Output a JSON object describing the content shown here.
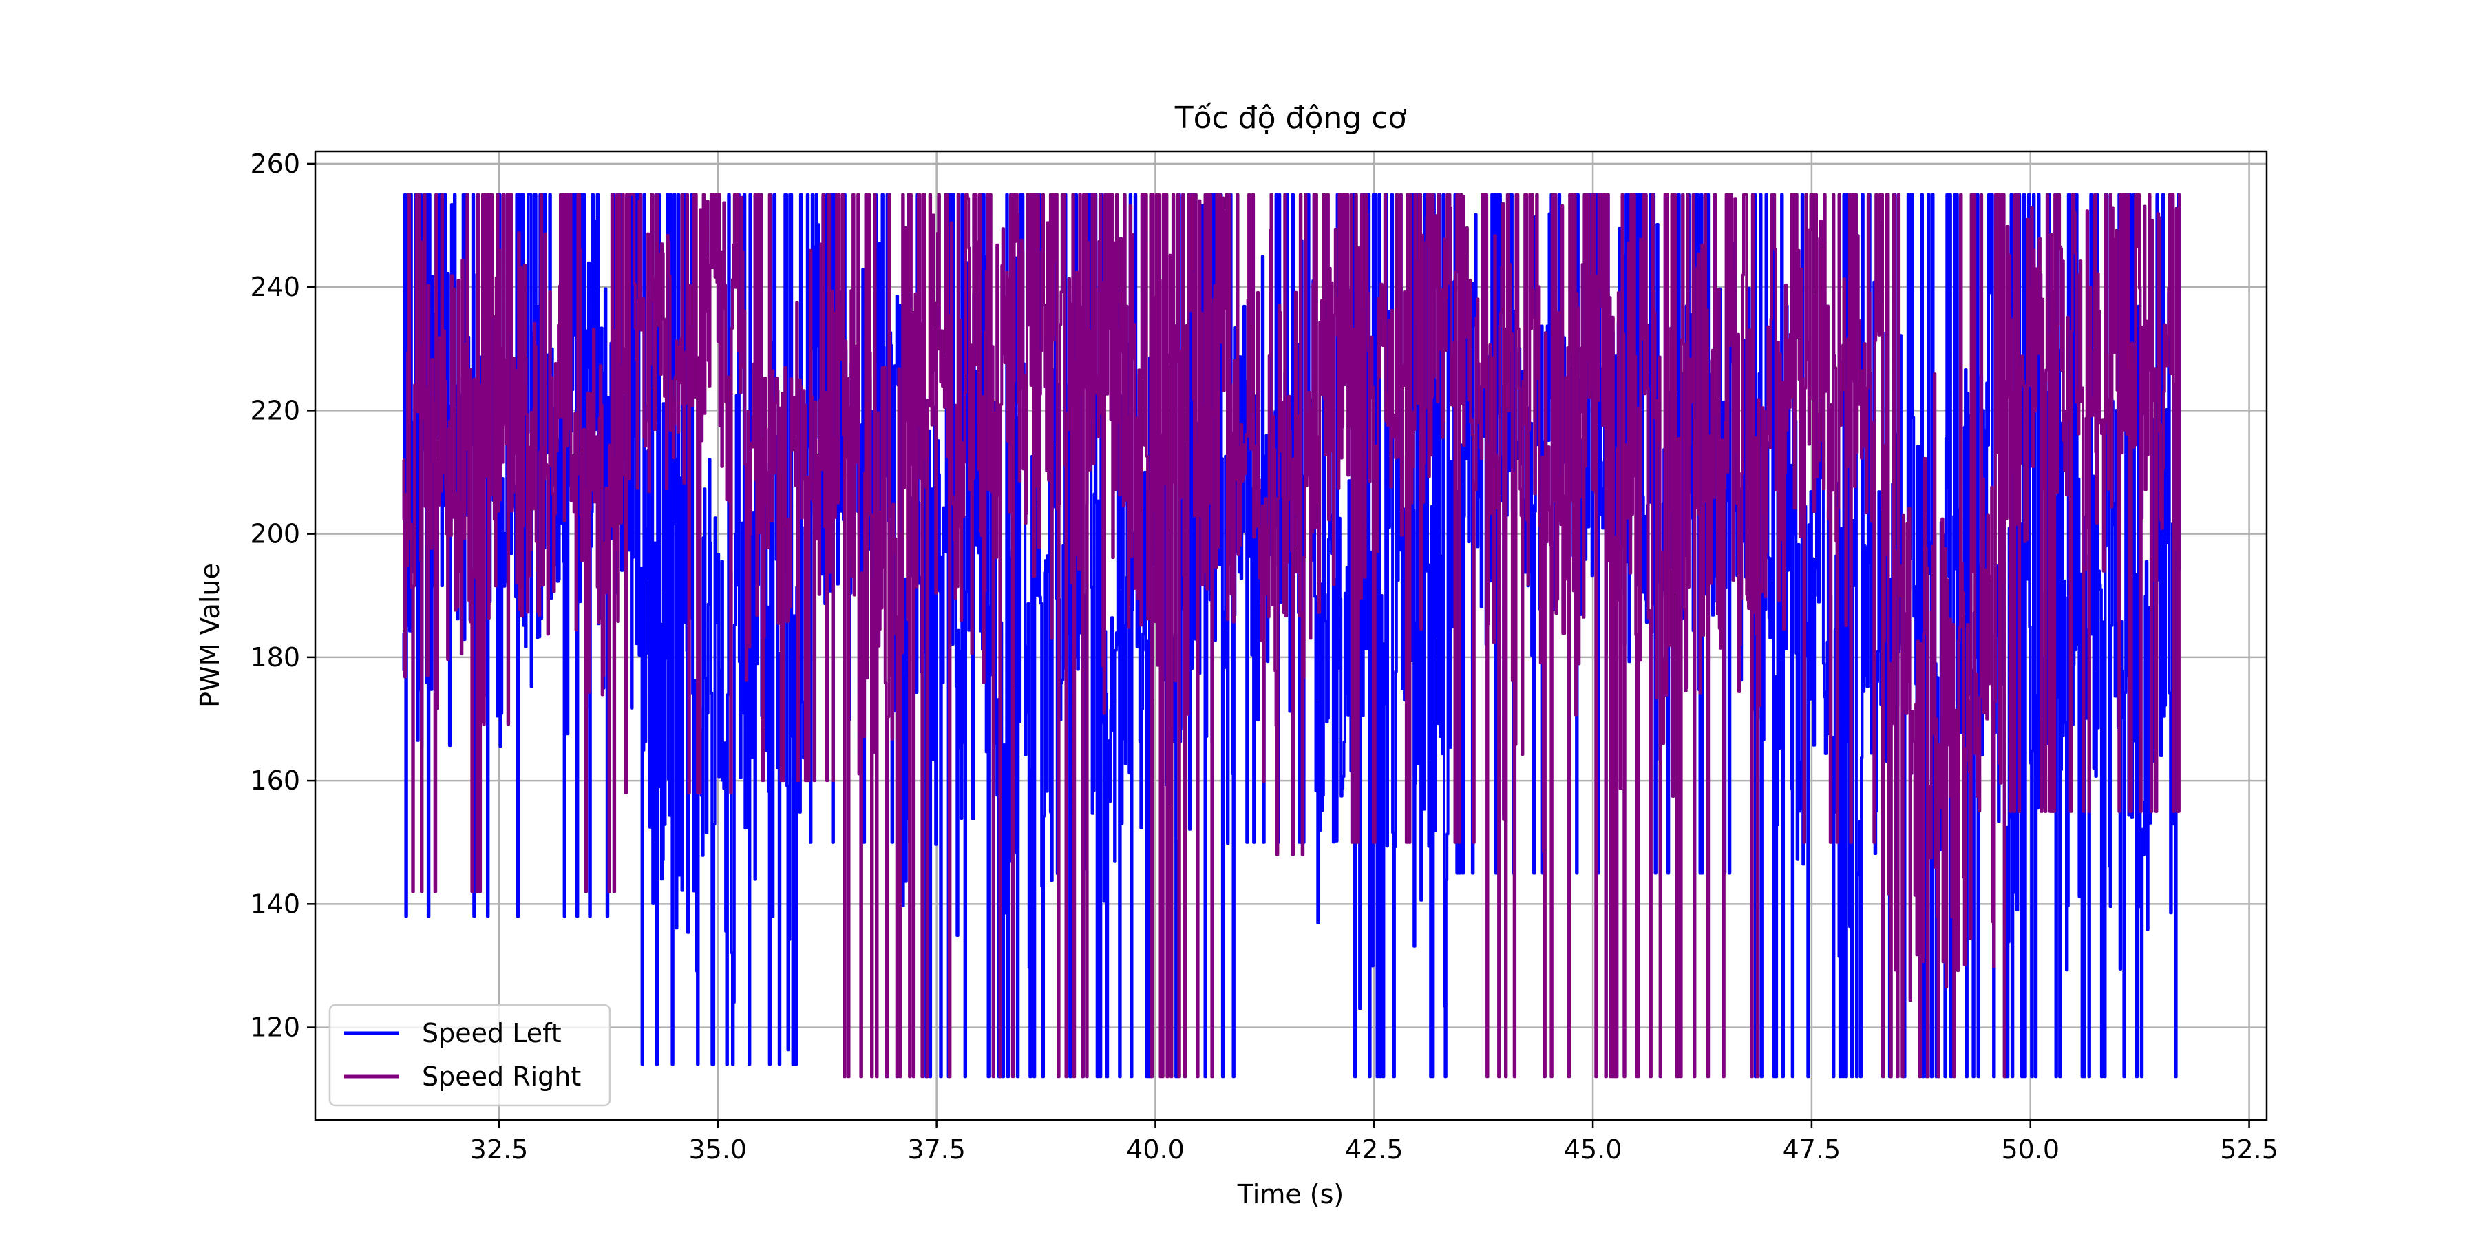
{
  "chart_data": {
    "type": "line",
    "title": "Tốc độ động cơ",
    "xlabel": "Time (s)",
    "ylabel": "PWM Value",
    "xlim": [
      30.4,
      52.7
    ],
    "ylim": [
      105,
      262
    ],
    "x_ticks": [
      32.5,
      35.0,
      37.5,
      40.0,
      42.5,
      45.0,
      47.5,
      50.0,
      52.5
    ],
    "x_tick_labels": [
      "32.5",
      "35.0",
      "37.5",
      "40.0",
      "42.5",
      "45.0",
      "47.5",
      "50.0",
      "52.5"
    ],
    "y_ticks": [
      120,
      140,
      160,
      180,
      200,
      220,
      240,
      260
    ],
    "y_tick_labels": [
      "120",
      "140",
      "160",
      "180",
      "200",
      "220",
      "240",
      "260"
    ],
    "grid": true,
    "legend_position": "lower-left",
    "x_range_data": [
      31.4,
      51.7
    ],
    "value_range": [
      112,
      255
    ],
    "series": [
      {
        "name": "Speed Left",
        "color": "#0000ff",
        "start": [
          31.4,
          184
        ],
        "end": [
          51.7,
          226
        ],
        "segments": [
          {
            "x": [
              31.4,
              34.0
            ],
            "low": 138,
            "high": 255,
            "mid": 210
          },
          {
            "x": [
              34.0,
              36.0
            ],
            "low": 114,
            "high": 255,
            "mid": 180
          },
          {
            "x": [
              36.0,
              37.1
            ],
            "low": 150,
            "high": 255,
            "mid": 215
          },
          {
            "x": [
              37.1,
              40.9
            ],
            "low": 112,
            "high": 255,
            "mid": 190
          },
          {
            "x": [
              40.9,
              41.8
            ],
            "low": 150,
            "high": 255,
            "mid": 210
          },
          {
            "x": [
              41.8,
              43.4
            ],
            "low": 112,
            "high": 255,
            "mid": 180
          },
          {
            "x": [
              43.4,
              46.8
            ],
            "low": 145,
            "high": 255,
            "mid": 215
          },
          {
            "x": [
              46.8,
              49.7
            ],
            "low": 112,
            "high": 255,
            "mid": 185
          },
          {
            "x": [
              49.7,
              51.7
            ],
            "low": 112,
            "high": 255,
            "mid": 180
          }
        ]
      },
      {
        "name": "Speed Right",
        "color": "#800080",
        "start": [
          31.4,
          212
        ],
        "end": [
          51.7,
          203
        ],
        "segments": [
          {
            "x": [
              31.4,
              33.9
            ],
            "low": 142,
            "high": 255,
            "mid": 210
          },
          {
            "x": [
              33.9,
              35.3
            ],
            "low": 158,
            "high": 255,
            "mid": 232
          },
          {
            "x": [
              35.3,
              36.4
            ],
            "low": 160,
            "high": 255,
            "mid": 215
          },
          {
            "x": [
              36.4,
              37.1
            ],
            "low": 112,
            "high": 255,
            "mid": 200
          },
          {
            "x": [
              37.1,
              40.8
            ],
            "low": 112,
            "high": 255,
            "mid": 225
          },
          {
            "x": [
              40.8,
              41.8
            ],
            "low": 148,
            "high": 255,
            "mid": 205
          },
          {
            "x": [
              41.8,
              43.7
            ],
            "low": 150,
            "high": 255,
            "mid": 228
          },
          {
            "x": [
              43.7,
              47.0
            ],
            "low": 112,
            "high": 255,
            "mid": 215
          },
          {
            "x": [
              47.0,
              48.3
            ],
            "low": 150,
            "high": 255,
            "mid": 225
          },
          {
            "x": [
              48.3,
              49.7
            ],
            "low": 112,
            "high": 255,
            "mid": 175
          },
          {
            "x": [
              49.7,
              51.7
            ],
            "low": 155,
            "high": 255,
            "mid": 225
          }
        ]
      }
    ]
  }
}
